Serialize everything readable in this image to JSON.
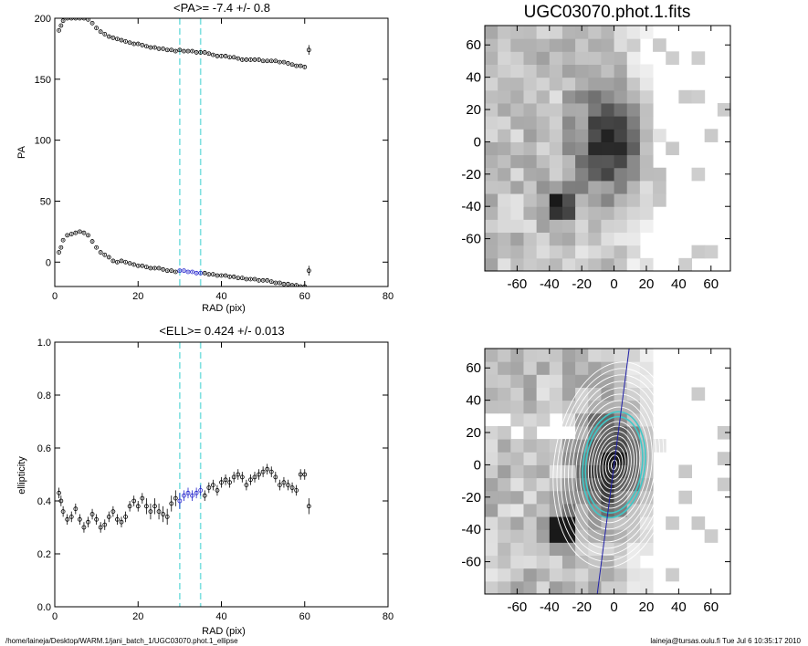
{
  "footer": {
    "path": "/home/laineja/Desktop/WARM.1/jani_batch_1/UGC03070.phot.1_ellipse",
    "user_time": "laineja@tursas.oulu.fi  Tue Jul  6 10:35:17 2010"
  },
  "chart_data": [
    {
      "type": "scatter",
      "title": "<PA>=  -7.4 +/-   0.8",
      "xlabel": "RAD (pix)",
      "ylabel": "PA",
      "xlim": [
        0,
        80
      ],
      "ylim": [
        -20,
        200
      ],
      "x_ticks": [
        0,
        20,
        40,
        60,
        80
      ],
      "y_ticks": [
        0,
        50,
        100,
        150,
        200
      ],
      "vlines": [
        30,
        35
      ],
      "vline_color": "#7fe0e0",
      "marker_color": "#000000",
      "highlight_color": "#2222cc",
      "series": [
        {
          "x": [
            1,
            1.5,
            2,
            3,
            4,
            5,
            6,
            7,
            8,
            9,
            10,
            11,
            12,
            13,
            14,
            15,
            16,
            17,
            18,
            19,
            20,
            21,
            22,
            23,
            24,
            25,
            26,
            27,
            28,
            29,
            30,
            31,
            32,
            33,
            34,
            35,
            36,
            37,
            38,
            39,
            40,
            41,
            42,
            43,
            44,
            45,
            46,
            47,
            48,
            49,
            50,
            51,
            52,
            53,
            54,
            55,
            56,
            57,
            58,
            59,
            60,
            61
          ],
          "y": [
            8,
            12,
            18,
            22,
            23,
            24,
            25,
            24,
            22,
            17,
            12,
            8,
            6,
            4,
            1,
            0,
            1,
            0,
            -1,
            -2,
            -3,
            -3,
            -4,
            -5,
            -5,
            -5,
            -6,
            -7,
            -7,
            -8,
            -7,
            -7,
            -8,
            -8,
            -9,
            -9,
            -9,
            -10,
            -10,
            -11,
            -11,
            -11,
            -12,
            -12,
            -13,
            -13,
            -14,
            -14,
            -14,
            -15,
            -15,
            -15,
            -16,
            -17,
            -17,
            -18,
            -18,
            -19,
            -19,
            -20,
            -20,
            -7
          ],
          "highlight_x_range": [
            30,
            35
          ]
        },
        {
          "x": [
            1,
            1.5,
            2,
            3,
            4,
            5,
            6,
            7,
            8,
            9,
            10,
            11,
            12,
            13,
            14,
            15,
            16,
            17,
            18,
            19,
            20,
            21,
            22,
            23,
            24,
            25,
            26,
            27,
            28,
            29,
            30,
            31,
            32,
            33,
            34,
            35,
            36,
            37,
            38,
            39,
            40,
            41,
            42,
            43,
            44,
            45,
            46,
            47,
            48,
            49,
            50,
            51,
            52,
            53,
            54,
            55,
            56,
            57,
            58,
            59,
            60,
            61
          ],
          "y": [
            190,
            194,
            198,
            200,
            200,
            200,
            200,
            200,
            199,
            196,
            192,
            189,
            187,
            185,
            184,
            183,
            182,
            181,
            180,
            179,
            179,
            178,
            177,
            176,
            176,
            175,
            175,
            174,
            174,
            173,
            174,
            173,
            173,
            173,
            172,
            172,
            172,
            171,
            170,
            169,
            169,
            169,
            168,
            168,
            167,
            166,
            166,
            166,
            166,
            166,
            165,
            165,
            165,
            165,
            164,
            164,
            163,
            162,
            161,
            161,
            160,
            174
          ]
        }
      ]
    },
    {
      "type": "scatter",
      "title": "<ELL>= 0.424 +/-  0.013",
      "xlabel": "RAD (pix)",
      "ylabel": "ellipticity",
      "xlim": [
        0,
        80
      ],
      "ylim": [
        0,
        1
      ],
      "x_ticks": [
        0,
        20,
        40,
        60,
        80
      ],
      "y_ticks": [
        0.0,
        0.2,
        0.4,
        0.6,
        0.8,
        1.0
      ],
      "vlines": [
        30,
        35
      ],
      "vline_color": "#7fe0e0",
      "marker_color": "#000000",
      "highlight_color": "#2222cc",
      "series": [
        {
          "x": [
            1,
            1.5,
            2,
            3,
            4,
            5,
            6,
            7,
            8,
            9,
            10,
            11,
            12,
            13,
            14,
            15,
            16,
            17,
            18,
            19,
            20,
            21,
            22,
            23,
            24,
            25,
            26,
            27,
            28,
            29,
            30,
            31,
            32,
            33,
            34,
            35,
            36,
            37,
            38,
            39,
            40,
            41,
            42,
            43,
            44,
            45,
            46,
            47,
            48,
            49,
            50,
            51,
            52,
            53,
            54,
            55,
            56,
            57,
            58,
            59,
            60,
            61
          ],
          "y": [
            0.43,
            0.4,
            0.36,
            0.33,
            0.34,
            0.37,
            0.33,
            0.3,
            0.32,
            0.35,
            0.33,
            0.3,
            0.31,
            0.34,
            0.36,
            0.33,
            0.32,
            0.34,
            0.38,
            0.4,
            0.38,
            0.41,
            0.38,
            0.36,
            0.38,
            0.36,
            0.35,
            0.34,
            0.39,
            0.41,
            0.4,
            0.42,
            0.43,
            0.42,
            0.43,
            0.44,
            0.42,
            0.45,
            0.46,
            0.44,
            0.47,
            0.48,
            0.47,
            0.49,
            0.5,
            0.49,
            0.46,
            0.48,
            0.49,
            0.5,
            0.51,
            0.52,
            0.51,
            0.49,
            0.46,
            0.47,
            0.46,
            0.45,
            0.44,
            0.5,
            0.5,
            0.38
          ],
          "err": [
            0.02,
            0.02,
            0.02,
            0.02,
            0.02,
            0.02,
            0.02,
            0.02,
            0.02,
            0.02,
            0.02,
            0.02,
            0.02,
            0.02,
            0.02,
            0.02,
            0.02,
            0.02,
            0.02,
            0.02,
            0.02,
            0.02,
            0.03,
            0.03,
            0.03,
            0.03,
            0.03,
            0.03,
            0.03,
            0.03,
            0.03,
            0.02,
            0.02,
            0.02,
            0.02,
            0.02,
            0.02,
            0.02,
            0.02,
            0.02,
            0.02,
            0.02,
            0.02,
            0.02,
            0.02,
            0.02,
            0.02,
            0.02,
            0.02,
            0.02,
            0.02,
            0.02,
            0.02,
            0.02,
            0.02,
            0.02,
            0.02,
            0.02,
            0.02,
            0.02,
            0.02,
            0.03
          ],
          "highlight_x_range": [
            30,
            35
          ]
        }
      ]
    },
    {
      "type": "heatmap",
      "title": "UGC03070.phot.1.fits",
      "xlabel": "",
      "ylabel": "",
      "xlim": [
        -80,
        72
      ],
      "ylim": [
        -80,
        72
      ],
      "x_ticks": [
        -60,
        -40,
        -20,
        0,
        20,
        40,
        60
      ],
      "y_ticks": [
        -60,
        -40,
        -20,
        0,
        20,
        40,
        60
      ],
      "colormap": "grayscale inverted",
      "sources": [
        {
          "x": 0,
          "y": 0,
          "peak": 0.75,
          "sigma_x": 14,
          "sigma_y": 22
        },
        {
          "x": -33,
          "y": -40,
          "peak": 1.0,
          "sigma_x": 6,
          "sigma_y": 7
        }
      ],
      "diffuse_background": 0.3,
      "blank_region": "right side (x > 25)"
    },
    {
      "type": "heatmap",
      "title": "",
      "xlabel": "",
      "ylabel": "",
      "xlim": [
        -80,
        72
      ],
      "ylim": [
        -80,
        72
      ],
      "x_ticks": [
        -60,
        -40,
        -20,
        0,
        20,
        40,
        60
      ],
      "y_ticks": [
        -60,
        -40,
        -20,
        0,
        20,
        40,
        60
      ],
      "colormap": "grayscale inverted",
      "overlay": "isophote ellipses",
      "ellipse_center": [
        0,
        0
      ],
      "ellipse_semi_major_axes": [
        3,
        6,
        9,
        12,
        15,
        18,
        21,
        24,
        27,
        30,
        33,
        36,
        40,
        44,
        48,
        52,
        56,
        60,
        64
      ],
      "ellipse_color": "#ffffff",
      "highlight_ellipse_axis_range": [
        30,
        35
      ],
      "highlight_ellipse_color": "#40c8c8",
      "ellipse_ellipticity": 0.42,
      "major_axis_pa_deg": -7.4,
      "major_axis_line_color": "#2222aa"
    }
  ]
}
